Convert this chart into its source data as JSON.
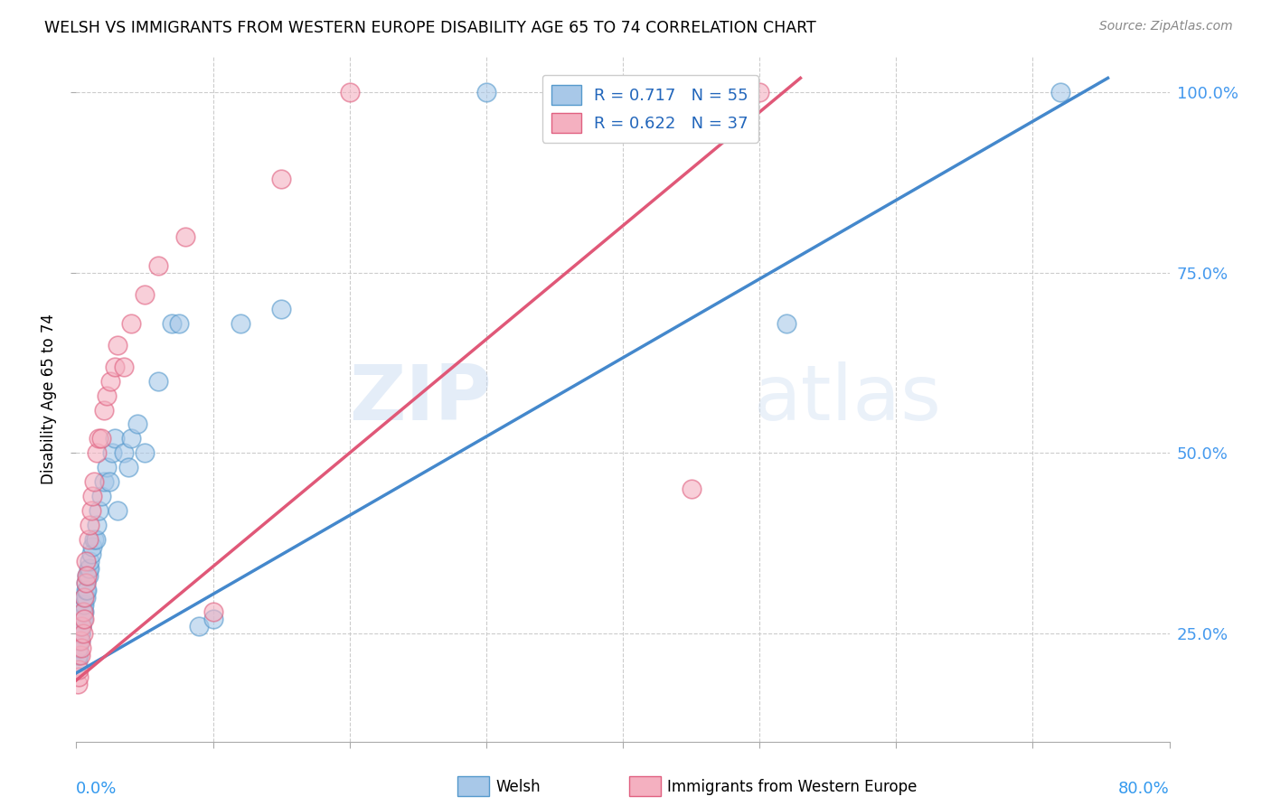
{
  "title": "WELSH VS IMMIGRANTS FROM WESTERN EUROPE DISABILITY AGE 65 TO 74 CORRELATION CHART",
  "source": "Source: ZipAtlas.com",
  "ylabel": "Disability Age 65 to 74",
  "legend_welsh": "Welsh",
  "legend_immigrants": "Immigrants from Western Europe",
  "r_welsh": 0.717,
  "n_welsh": 55,
  "r_immigrants": 0.622,
  "n_immigrants": 37,
  "blue_fill": "#a8c8e8",
  "blue_edge": "#5599cc",
  "pink_fill": "#f4b0c0",
  "pink_edge": "#e06080",
  "blue_line": "#4488cc",
  "pink_line": "#e05878",
  "welsh_points_x": [
    0.001,
    0.001,
    0.002,
    0.002,
    0.002,
    0.003,
    0.003,
    0.003,
    0.003,
    0.004,
    0.004,
    0.004,
    0.005,
    0.005,
    0.005,
    0.006,
    0.006,
    0.006,
    0.007,
    0.007,
    0.007,
    0.008,
    0.008,
    0.009,
    0.009,
    0.01,
    0.01,
    0.011,
    0.012,
    0.013,
    0.014,
    0.015,
    0.016,
    0.018,
    0.02,
    0.022,
    0.024,
    0.026,
    0.028,
    0.03,
    0.035,
    0.038,
    0.04,
    0.045,
    0.05,
    0.06,
    0.07,
    0.075,
    0.09,
    0.1,
    0.12,
    0.15,
    0.3,
    0.52,
    0.72
  ],
  "welsh_points_y": [
    0.21,
    0.22,
    0.22,
    0.23,
    0.24,
    0.24,
    0.25,
    0.26,
    0.25,
    0.26,
    0.27,
    0.26,
    0.27,
    0.28,
    0.29,
    0.28,
    0.29,
    0.3,
    0.3,
    0.31,
    0.32,
    0.31,
    0.33,
    0.33,
    0.34,
    0.34,
    0.35,
    0.36,
    0.37,
    0.38,
    0.38,
    0.4,
    0.42,
    0.44,
    0.46,
    0.48,
    0.46,
    0.5,
    0.52,
    0.42,
    0.5,
    0.48,
    0.52,
    0.54,
    0.5,
    0.6,
    0.68,
    0.68,
    0.26,
    0.27,
    0.68,
    0.7,
    1.0,
    0.68,
    1.0
  ],
  "immigrants_points_x": [
    0.001,
    0.002,
    0.002,
    0.003,
    0.003,
    0.004,
    0.004,
    0.005,
    0.005,
    0.006,
    0.006,
    0.007,
    0.007,
    0.008,
    0.009,
    0.01,
    0.011,
    0.012,
    0.013,
    0.015,
    0.016,
    0.018,
    0.02,
    0.022,
    0.025,
    0.028,
    0.03,
    0.035,
    0.04,
    0.05,
    0.06,
    0.08,
    0.1,
    0.15,
    0.2,
    0.45,
    0.5
  ],
  "immigrants_points_y": [
    0.18,
    0.19,
    0.2,
    0.22,
    0.24,
    0.23,
    0.26,
    0.25,
    0.28,
    0.27,
    0.3,
    0.32,
    0.35,
    0.33,
    0.38,
    0.4,
    0.42,
    0.44,
    0.46,
    0.5,
    0.52,
    0.52,
    0.56,
    0.58,
    0.6,
    0.62,
    0.65,
    0.62,
    0.68,
    0.72,
    0.76,
    0.8,
    0.28,
    0.88,
    1.0,
    0.45,
    1.0
  ],
  "xlim": [
    0.0,
    0.8
  ],
  "ylim": [
    0.1,
    1.05
  ],
  "yticks": [
    0.25,
    0.5,
    0.75,
    1.0
  ],
  "xticks": [
    0.0,
    0.1,
    0.2,
    0.3,
    0.4,
    0.5,
    0.6,
    0.7,
    0.8
  ],
  "bg_color": "#ffffff",
  "grid_color": "#cccccc"
}
